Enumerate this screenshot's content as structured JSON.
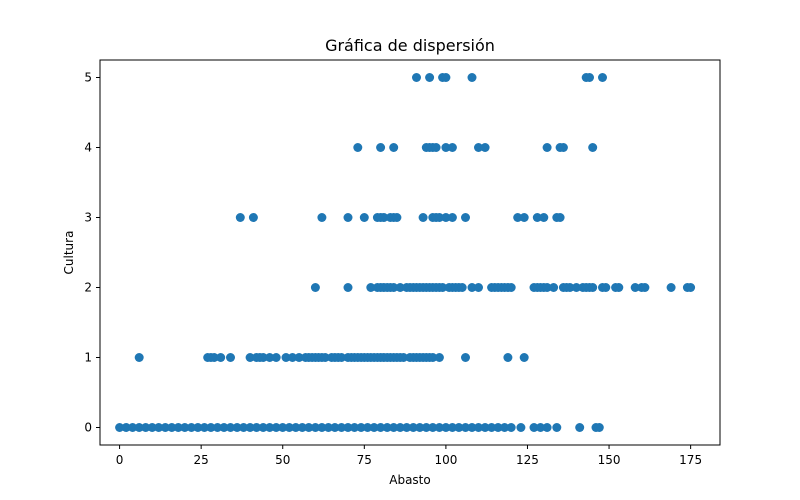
{
  "chart_data": {
    "type": "scatter",
    "title": "Gráfica de dispersión",
    "xlabel": "Abasto",
    "ylabel": "Cultura",
    "xlim": [
      -6,
      184
    ],
    "ylim": [
      -0.25,
      5.25
    ],
    "xticks": [
      0,
      25,
      50,
      75,
      100,
      125,
      150,
      175
    ],
    "yticks": [
      0,
      1,
      2,
      3,
      4,
      5
    ],
    "grid": false,
    "marker_color": "#1f77b4",
    "series": [
      {
        "values": [
          [
            91,
            5
          ],
          [
            95,
            5
          ],
          [
            99,
            5
          ],
          [
            100,
            5
          ],
          [
            108,
            5
          ],
          [
            143,
            5
          ],
          [
            144,
            5
          ],
          [
            148,
            5
          ],
          [
            73,
            4
          ],
          [
            80,
            4
          ],
          [
            84,
            4
          ],
          [
            94,
            4
          ],
          [
            95,
            4
          ],
          [
            96,
            4
          ],
          [
            97,
            4
          ],
          [
            100,
            4
          ],
          [
            102,
            4
          ],
          [
            110,
            4
          ],
          [
            112,
            4
          ],
          [
            131,
            4
          ],
          [
            135,
            4
          ],
          [
            136,
            4
          ],
          [
            145,
            4
          ],
          [
            37,
            3
          ],
          [
            41,
            3
          ],
          [
            62,
            3
          ],
          [
            70,
            3
          ],
          [
            75,
            3
          ],
          [
            79,
            3
          ],
          [
            80,
            3
          ],
          [
            81,
            3
          ],
          [
            83,
            3
          ],
          [
            84,
            3
          ],
          [
            85,
            3
          ],
          [
            93,
            3
          ],
          [
            96,
            3
          ],
          [
            97,
            3
          ],
          [
            98,
            3
          ],
          [
            100,
            3
          ],
          [
            102,
            3
          ],
          [
            106,
            3
          ],
          [
            122,
            3
          ],
          [
            124,
            3
          ],
          [
            128,
            3
          ],
          [
            130,
            3
          ],
          [
            134,
            3
          ],
          [
            135,
            3
          ],
          [
            60,
            2
          ],
          [
            70,
            2
          ],
          [
            77,
            2
          ],
          [
            79,
            2
          ],
          [
            80,
            2
          ],
          [
            81,
            2
          ],
          [
            82,
            2
          ],
          [
            83,
            2
          ],
          [
            84,
            2
          ],
          [
            86,
            2
          ],
          [
            88,
            2
          ],
          [
            89,
            2
          ],
          [
            90,
            2
          ],
          [
            91,
            2
          ],
          [
            92,
            2
          ],
          [
            93,
            2
          ],
          [
            94,
            2
          ],
          [
            95,
            2
          ],
          [
            96,
            2
          ],
          [
            97,
            2
          ],
          [
            98,
            2
          ],
          [
            99,
            2
          ],
          [
            101,
            2
          ],
          [
            102,
            2
          ],
          [
            103,
            2
          ],
          [
            104,
            2
          ],
          [
            105,
            2
          ],
          [
            108,
            2
          ],
          [
            110,
            2
          ],
          [
            114,
            2
          ],
          [
            115,
            2
          ],
          [
            116,
            2
          ],
          [
            117,
            2
          ],
          [
            118,
            2
          ],
          [
            119,
            2
          ],
          [
            120,
            2
          ],
          [
            127,
            2
          ],
          [
            128,
            2
          ],
          [
            129,
            2
          ],
          [
            130,
            2
          ],
          [
            131,
            2
          ],
          [
            133,
            2
          ],
          [
            136,
            2
          ],
          [
            137,
            2
          ],
          [
            138,
            2
          ],
          [
            140,
            2
          ],
          [
            142,
            2
          ],
          [
            143,
            2
          ],
          [
            144,
            2
          ],
          [
            145,
            2
          ],
          [
            148,
            2
          ],
          [
            149,
            2
          ],
          [
            152,
            2
          ],
          [
            153,
            2
          ],
          [
            158,
            2
          ],
          [
            160,
            2
          ],
          [
            161,
            2
          ],
          [
            169,
            2
          ],
          [
            174,
            2
          ],
          [
            175,
            2
          ],
          [
            6,
            1
          ],
          [
            27,
            1
          ],
          [
            28,
            1
          ],
          [
            29,
            1
          ],
          [
            31,
            1
          ],
          [
            34,
            1
          ],
          [
            40,
            1
          ],
          [
            42,
            1
          ],
          [
            43,
            1
          ],
          [
            44,
            1
          ],
          [
            46,
            1
          ],
          [
            48,
            1
          ],
          [
            51,
            1
          ],
          [
            53,
            1
          ],
          [
            55,
            1
          ],
          [
            57,
            1
          ],
          [
            58,
            1
          ],
          [
            59,
            1
          ],
          [
            60,
            1
          ],
          [
            61,
            1
          ],
          [
            62,
            1
          ],
          [
            63,
            1
          ],
          [
            65,
            1
          ],
          [
            66,
            1
          ],
          [
            67,
            1
          ],
          [
            68,
            1
          ],
          [
            70,
            1
          ],
          [
            71,
            1
          ],
          [
            72,
            1
          ],
          [
            73,
            1
          ],
          [
            74,
            1
          ],
          [
            75,
            1
          ],
          [
            76,
            1
          ],
          [
            77,
            1
          ],
          [
            78,
            1
          ],
          [
            79,
            1
          ],
          [
            80,
            1
          ],
          [
            81,
            1
          ],
          [
            82,
            1
          ],
          [
            83,
            1
          ],
          [
            84,
            1
          ],
          [
            85,
            1
          ],
          [
            86,
            1
          ],
          [
            87,
            1
          ],
          [
            89,
            1
          ],
          [
            90,
            1
          ],
          [
            91,
            1
          ],
          [
            92,
            1
          ],
          [
            93,
            1
          ],
          [
            94,
            1
          ],
          [
            95,
            1
          ],
          [
            96,
            1
          ],
          [
            98,
            1
          ],
          [
            106,
            1
          ],
          [
            119,
            1
          ],
          [
            124,
            1
          ],
          [
            0,
            0
          ],
          [
            2,
            0
          ],
          [
            4,
            0
          ],
          [
            6,
            0
          ],
          [
            8,
            0
          ],
          [
            10,
            0
          ],
          [
            12,
            0
          ],
          [
            14,
            0
          ],
          [
            16,
            0
          ],
          [
            18,
            0
          ],
          [
            20,
            0
          ],
          [
            22,
            0
          ],
          [
            24,
            0
          ],
          [
            26,
            0
          ],
          [
            28,
            0
          ],
          [
            30,
            0
          ],
          [
            32,
            0
          ],
          [
            34,
            0
          ],
          [
            36,
            0
          ],
          [
            38,
            0
          ],
          [
            40,
            0
          ],
          [
            42,
            0
          ],
          [
            44,
            0
          ],
          [
            46,
            0
          ],
          [
            48,
            0
          ],
          [
            50,
            0
          ],
          [
            52,
            0
          ],
          [
            54,
            0
          ],
          [
            56,
            0
          ],
          [
            58,
            0
          ],
          [
            60,
            0
          ],
          [
            62,
            0
          ],
          [
            64,
            0
          ],
          [
            66,
            0
          ],
          [
            68,
            0
          ],
          [
            70,
            0
          ],
          [
            72,
            0
          ],
          [
            74,
            0
          ],
          [
            76,
            0
          ],
          [
            78,
            0
          ],
          [
            80,
            0
          ],
          [
            82,
            0
          ],
          [
            84,
            0
          ],
          [
            86,
            0
          ],
          [
            88,
            0
          ],
          [
            90,
            0
          ],
          [
            92,
            0
          ],
          [
            94,
            0
          ],
          [
            96,
            0
          ],
          [
            98,
            0
          ],
          [
            100,
            0
          ],
          [
            102,
            0
          ],
          [
            104,
            0
          ],
          [
            106,
            0
          ],
          [
            108,
            0
          ],
          [
            110,
            0
          ],
          [
            112,
            0
          ],
          [
            114,
            0
          ],
          [
            116,
            0
          ],
          [
            118,
            0
          ],
          [
            120,
            0
          ],
          [
            123,
            0
          ],
          [
            127,
            0
          ],
          [
            129,
            0
          ],
          [
            131,
            0
          ],
          [
            134,
            0
          ],
          [
            141,
            0
          ],
          [
            146,
            0
          ],
          [
            147,
            0
          ]
        ]
      }
    ]
  }
}
